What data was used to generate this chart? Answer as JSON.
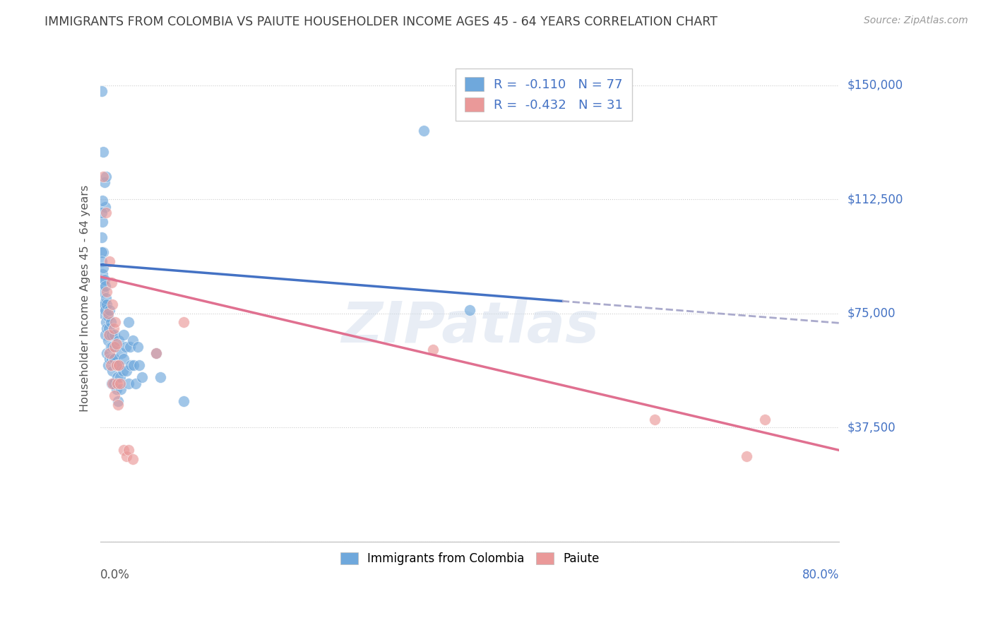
{
  "title": "IMMIGRANTS FROM COLOMBIA VS PAIUTE HOUSEHOLDER INCOME AGES 45 - 64 YEARS CORRELATION CHART",
  "source": "Source: ZipAtlas.com",
  "ylabel": "Householder Income Ages 45 - 64 years",
  "xmin": 0.0,
  "xmax": 0.8,
  "ymin": 0,
  "ymax": 160000,
  "yticks": [
    0,
    37500,
    75000,
    112500,
    150000
  ],
  "ytick_labels": [
    "",
    "$37,500",
    "$75,000",
    "$112,500",
    "$150,000"
  ],
  "colombia_color": "#6fa8dc",
  "paiute_color": "#ea9999",
  "colombia_R": -0.11,
  "colombia_N": 77,
  "paiute_R": -0.432,
  "paiute_N": 31,
  "colombia_line_color": "#4472c4",
  "colombia_dash_color": "#aaaacc",
  "paiute_line_color": "#e07090",
  "watermark": "ZIPatlas",
  "background_color": "#ffffff",
  "grid_color": "#cccccc",
  "title_color": "#404040",
  "source_color": "#999999",
  "axis_label_color": "#555555",
  "legend_text_color": "#4472c4",
  "right_axis_color": "#4472c4",
  "colombia_trend": [
    0.0,
    0.5,
    91000,
    79000
  ],
  "paiute_trend": [
    0.0,
    0.8,
    87000,
    30000
  ],
  "colombia_pts": [
    [
      0.001,
      148000
    ],
    [
      0.003,
      128000
    ],
    [
      0.004,
      118000
    ],
    [
      0.005,
      110000
    ],
    [
      0.006,
      120000
    ],
    [
      0.001,
      100000
    ],
    [
      0.002,
      105000
    ],
    [
      0.003,
      95000
    ],
    [
      0.002,
      112000
    ],
    [
      0.001,
      108000
    ],
    [
      0.001,
      95000
    ],
    [
      0.002,
      88000
    ],
    [
      0.001,
      92000
    ],
    [
      0.002,
      85000
    ],
    [
      0.002,
      78000
    ],
    [
      0.003,
      82000
    ],
    [
      0.003,
      90000
    ],
    [
      0.003,
      75000
    ],
    [
      0.004,
      86000
    ],
    [
      0.004,
      78000
    ],
    [
      0.005,
      84000
    ],
    [
      0.005,
      76000
    ],
    [
      0.005,
      68000
    ],
    [
      0.006,
      80000
    ],
    [
      0.006,
      72000
    ],
    [
      0.007,
      78000
    ],
    [
      0.007,
      70000
    ],
    [
      0.007,
      62000
    ],
    [
      0.008,
      74000
    ],
    [
      0.008,
      66000
    ],
    [
      0.008,
      58000
    ],
    [
      0.009,
      70000
    ],
    [
      0.009,
      62000
    ],
    [
      0.01,
      76000
    ],
    [
      0.01,
      68000
    ],
    [
      0.01,
      60000
    ],
    [
      0.011,
      72000
    ],
    [
      0.011,
      64000
    ],
    [
      0.012,
      68000
    ],
    [
      0.012,
      60000
    ],
    [
      0.012,
      52000
    ],
    [
      0.013,
      64000
    ],
    [
      0.013,
      56000
    ],
    [
      0.014,
      60000
    ],
    [
      0.014,
      52000
    ],
    [
      0.015,
      68000
    ],
    [
      0.015,
      60000
    ],
    [
      0.016,
      64000
    ],
    [
      0.017,
      58000
    ],
    [
      0.017,
      50000
    ],
    [
      0.018,
      54000
    ],
    [
      0.019,
      46000
    ],
    [
      0.02,
      66000
    ],
    [
      0.02,
      58000
    ],
    [
      0.021,
      54000
    ],
    [
      0.022,
      50000
    ],
    [
      0.023,
      62000
    ],
    [
      0.024,
      56000
    ],
    [
      0.025,
      68000
    ],
    [
      0.025,
      60000
    ],
    [
      0.027,
      64000
    ],
    [
      0.028,
      56000
    ],
    [
      0.03,
      52000
    ],
    [
      0.03,
      72000
    ],
    [
      0.032,
      64000
    ],
    [
      0.033,
      58000
    ],
    [
      0.035,
      66000
    ],
    [
      0.036,
      58000
    ],
    [
      0.038,
      52000
    ],
    [
      0.04,
      64000
    ],
    [
      0.042,
      58000
    ],
    [
      0.045,
      54000
    ],
    [
      0.06,
      62000
    ],
    [
      0.065,
      54000
    ],
    [
      0.09,
      46000
    ],
    [
      0.35,
      135000
    ],
    [
      0.4,
      76000
    ]
  ],
  "paiute_pts": [
    [
      0.003,
      120000
    ],
    [
      0.006,
      108000
    ],
    [
      0.007,
      82000
    ],
    [
      0.008,
      75000
    ],
    [
      0.009,
      68000
    ],
    [
      0.01,
      62000
    ],
    [
      0.01,
      92000
    ],
    [
      0.011,
      58000
    ],
    [
      0.012,
      85000
    ],
    [
      0.013,
      78000
    ],
    [
      0.013,
      52000
    ],
    [
      0.014,
      70000
    ],
    [
      0.015,
      64000
    ],
    [
      0.015,
      48000
    ],
    [
      0.016,
      72000
    ],
    [
      0.017,
      65000
    ],
    [
      0.017,
      58000
    ],
    [
      0.018,
      52000
    ],
    [
      0.019,
      45000
    ],
    [
      0.02,
      58000
    ],
    [
      0.021,
      52000
    ],
    [
      0.025,
      30000
    ],
    [
      0.028,
      28000
    ],
    [
      0.03,
      30000
    ],
    [
      0.035,
      27000
    ],
    [
      0.06,
      62000
    ],
    [
      0.09,
      72000
    ],
    [
      0.36,
      63000
    ],
    [
      0.6,
      40000
    ],
    [
      0.7,
      28000
    ],
    [
      0.72,
      40000
    ]
  ]
}
